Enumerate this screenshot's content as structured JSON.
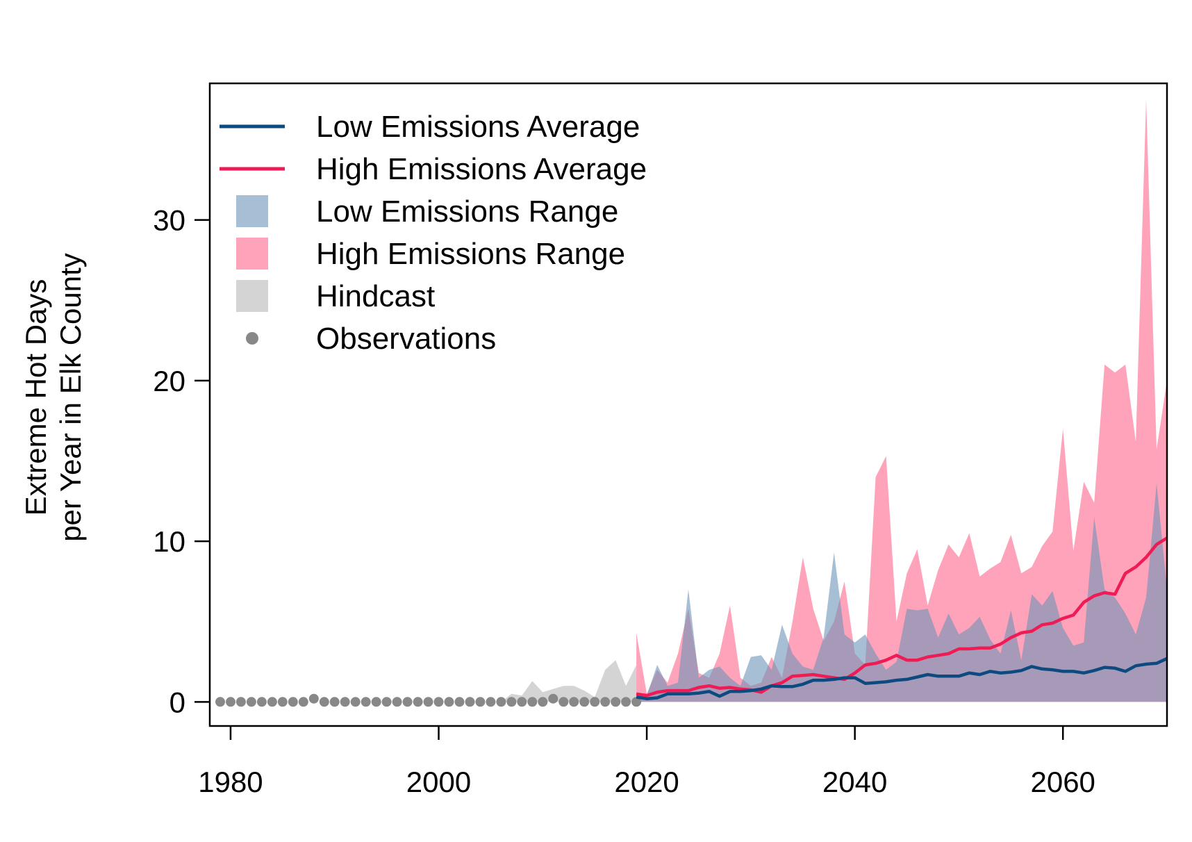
{
  "chart_data": {
    "type": "area",
    "title": "",
    "ylabel_lines": [
      "Extreme Hot Days",
      "per Year in Elk County"
    ],
    "xlabel": "",
    "xlim": [
      1978,
      2070
    ],
    "ylim": [
      -1.5,
      38.5
    ],
    "x_ticks": [
      1980,
      2000,
      2020,
      2040,
      2060
    ],
    "y_ticks": [
      0,
      10,
      20,
      30
    ],
    "grid": false,
    "legend_position": "top-left",
    "colors": {
      "low_avg": "#0d4a7f",
      "high_avg": "#ef1b55",
      "low_range": "#6b95b8",
      "high_range": "#ff7fa0",
      "hindcast": "#d4d4d4",
      "observations": "#888888"
    },
    "legend": [
      {
        "key": "low_avg",
        "label": "Low Emissions Average",
        "kind": "line"
      },
      {
        "key": "high_avg",
        "label": "High Emissions Average",
        "kind": "line"
      },
      {
        "key": "low_range",
        "label": "Low Emissions Range",
        "kind": "box"
      },
      {
        "key": "high_range",
        "label": "High Emissions Range",
        "kind": "box"
      },
      {
        "key": "hindcast",
        "label": "Hindcast",
        "kind": "box"
      },
      {
        "key": "observations",
        "label": "Observations",
        "kind": "point"
      }
    ],
    "observations": {
      "x": [
        1979,
        1980,
        1981,
        1982,
        1983,
        1984,
        1985,
        1986,
        1987,
        1988,
        1989,
        1990,
        1991,
        1992,
        1993,
        1994,
        1995,
        1996,
        1997,
        1998,
        1999,
        2000,
        2001,
        2002,
        2003,
        2004,
        2005,
        2006,
        2007,
        2008,
        2009,
        2010,
        2011,
        2012,
        2013,
        2014,
        2015,
        2016,
        2017,
        2018,
        2019
      ],
      "y": [
        0,
        0,
        0,
        0,
        0,
        0,
        0,
        0,
        0,
        0.2,
        0,
        0,
        0,
        0,
        0,
        0,
        0,
        0,
        0,
        0,
        0,
        0,
        0,
        0,
        0,
        0,
        0,
        0,
        0,
        0,
        0,
        0,
        0.2,
        0,
        0,
        0,
        0,
        0,
        0,
        0,
        0
      ]
    },
    "hindcast": {
      "x": [
        2006,
        2007,
        2008,
        2009,
        2010,
        2011,
        2012,
        2013,
        2014,
        2015,
        2016,
        2017,
        2018,
        2019
      ],
      "upper": [
        0,
        0.5,
        0.4,
        1.3,
        0.6,
        0.8,
        1.0,
        1.0,
        0.7,
        0.3,
        2.0,
        2.6,
        1.0,
        2.3
      ],
      "lower": [
        0,
        0,
        0,
        0,
        0,
        0,
        0,
        0,
        0,
        0,
        0,
        0,
        0,
        0
      ]
    },
    "high_range": {
      "x": [
        2019,
        2020,
        2021,
        2022,
        2023,
        2024,
        2025,
        2026,
        2027,
        2028,
        2029,
        2030,
        2031,
        2032,
        2033,
        2034,
        2035,
        2036,
        2037,
        2038,
        2039,
        2040,
        2041,
        2042,
        2043,
        2044,
        2045,
        2046,
        2047,
        2048,
        2049,
        2050,
        2051,
        2052,
        2053,
        2054,
        2055,
        2056,
        2057,
        2058,
        2059,
        2060,
        2061,
        2062,
        2063,
        2064,
        2065,
        2066,
        2067,
        2068,
        2069,
        2070
      ],
      "upper": [
        4.3,
        0.5,
        2.0,
        1.2,
        3.0,
        5.8,
        1.8,
        1.5,
        3.0,
        6.0,
        1.5,
        1.0,
        1.2,
        2.8,
        1.5,
        5.0,
        9.0,
        5.8,
        3.8,
        5.0,
        7.5,
        3.0,
        2.3,
        14.0,
        15.3,
        5.0,
        8.0,
        9.5,
        6.0,
        8.2,
        9.8,
        9.0,
        10.5,
        7.8,
        8.3,
        8.7,
        10.4,
        8.0,
        8.4,
        9.7,
        10.6,
        17.0,
        9.4,
        13.7,
        12.4,
        21.0,
        20.5,
        21.0,
        16.2,
        37.5,
        15.7,
        20.0
      ],
      "lower": [
        0,
        0,
        0,
        0,
        0,
        0,
        0,
        0,
        0,
        0,
        0,
        0,
        0,
        0,
        0,
        0,
        0,
        0,
        0,
        0,
        0,
        0,
        0,
        0,
        0,
        0,
        0,
        0,
        0,
        0,
        0,
        0,
        0,
        0,
        0,
        0,
        0,
        0,
        0,
        0,
        0,
        0,
        0,
        0,
        0,
        0,
        0,
        0,
        0,
        0,
        0,
        0
      ]
    },
    "low_range": {
      "x": [
        2019,
        2020,
        2021,
        2022,
        2023,
        2024,
        2025,
        2026,
        2027,
        2028,
        2029,
        2030,
        2031,
        2032,
        2033,
        2034,
        2035,
        2036,
        2037,
        2038,
        2039,
        2040,
        2041,
        2042,
        2043,
        2044,
        2045,
        2046,
        2047,
        2048,
        2049,
        2050,
        2051,
        2052,
        2053,
        2054,
        2055,
        2056,
        2057,
        2058,
        2059,
        2060,
        2061,
        2062,
        2063,
        2064,
        2065,
        2066,
        2067,
        2068,
        2069,
        2070
      ],
      "upper": [
        0,
        0.4,
        2.3,
        1.0,
        1.2,
        7.0,
        1.5,
        2.0,
        2.2,
        1.5,
        1.0,
        2.8,
        2.9,
        2.0,
        4.8,
        3.0,
        2.2,
        2.0,
        4.0,
        9.3,
        4.2,
        3.7,
        4.2,
        3.0,
        2.0,
        2.5,
        5.8,
        5.7,
        5.8,
        4.0,
        5.5,
        4.2,
        4.6,
        5.3,
        3.9,
        3.0,
        5.7,
        2.6,
        6.7,
        6.0,
        6.9,
        4.6,
        3.5,
        3.7,
        11.5,
        7.0,
        6.5,
        5.5,
        4.2,
        6.5,
        13.6,
        7.0
      ],
      "lower": [
        0,
        0,
        0,
        0,
        0,
        0,
        0,
        0,
        0,
        0,
        0,
        0,
        0,
        0,
        0,
        0,
        0,
        0,
        0,
        0,
        0,
        0,
        0,
        0,
        0,
        0,
        0,
        0,
        0,
        0,
        0,
        0,
        0,
        0,
        0,
        0,
        0,
        0,
        0,
        0,
        0,
        0,
        0,
        0,
        0,
        0,
        0,
        0,
        0,
        0,
        0,
        0
      ]
    },
    "high_avg": {
      "x": [
        2019,
        2020,
        2021,
        2022,
        2023,
        2024,
        2025,
        2026,
        2027,
        2028,
        2029,
        2030,
        2031,
        2032,
        2033,
        2034,
        2035,
        2036,
        2037,
        2038,
        2039,
        2040,
        2041,
        2042,
        2043,
        2044,
        2045,
        2046,
        2047,
        2048,
        2049,
        2050,
        2051,
        2052,
        2053,
        2054,
        2055,
        2056,
        2057,
        2058,
        2059,
        2060,
        2061,
        2062,
        2063,
        2064,
        2065,
        2066,
        2067,
        2068,
        2069,
        2070
      ],
      "y": [
        0.5,
        0.4,
        0.6,
        0.7,
        0.7,
        0.7,
        0.9,
        1.0,
        0.85,
        0.9,
        0.8,
        0.75,
        0.6,
        1.0,
        1.2,
        1.6,
        1.65,
        1.7,
        1.6,
        1.5,
        1.4,
        1.8,
        2.3,
        2.4,
        2.6,
        2.9,
        2.6,
        2.6,
        2.8,
        2.9,
        3.0,
        3.3,
        3.3,
        3.35,
        3.35,
        3.6,
        4.0,
        4.3,
        4.4,
        4.8,
        4.9,
        5.2,
        5.4,
        6.2,
        6.6,
        6.8,
        6.7,
        8.0,
        8.4,
        9.0,
        9.8,
        10.2
      ]
    },
    "low_avg": {
      "x": [
        2019,
        2020,
        2021,
        2022,
        2023,
        2024,
        2025,
        2026,
        2027,
        2028,
        2029,
        2030,
        2031,
        2032,
        2033,
        2034,
        2035,
        2036,
        2037,
        2038,
        2039,
        2040,
        2041,
        2042,
        2043,
        2044,
        2045,
        2046,
        2047,
        2048,
        2049,
        2050,
        2051,
        2052,
        2053,
        2054,
        2055,
        2056,
        2057,
        2058,
        2059,
        2060,
        2061,
        2062,
        2063,
        2064,
        2065,
        2066,
        2067,
        2068,
        2069,
        2070
      ],
      "y": [
        0.3,
        0.2,
        0.25,
        0.5,
        0.5,
        0.5,
        0.55,
        0.65,
        0.35,
        0.65,
        0.65,
        0.7,
        0.8,
        1.0,
        0.95,
        0.95,
        1.1,
        1.35,
        1.35,
        1.4,
        1.5,
        1.5,
        1.15,
        1.2,
        1.25,
        1.35,
        1.4,
        1.55,
        1.7,
        1.6,
        1.6,
        1.6,
        1.8,
        1.7,
        1.9,
        1.8,
        1.85,
        1.95,
        2.2,
        2.05,
        2.0,
        1.9,
        1.9,
        1.8,
        1.95,
        2.15,
        2.1,
        1.9,
        2.25,
        2.35,
        2.4,
        2.7
      ]
    }
  }
}
